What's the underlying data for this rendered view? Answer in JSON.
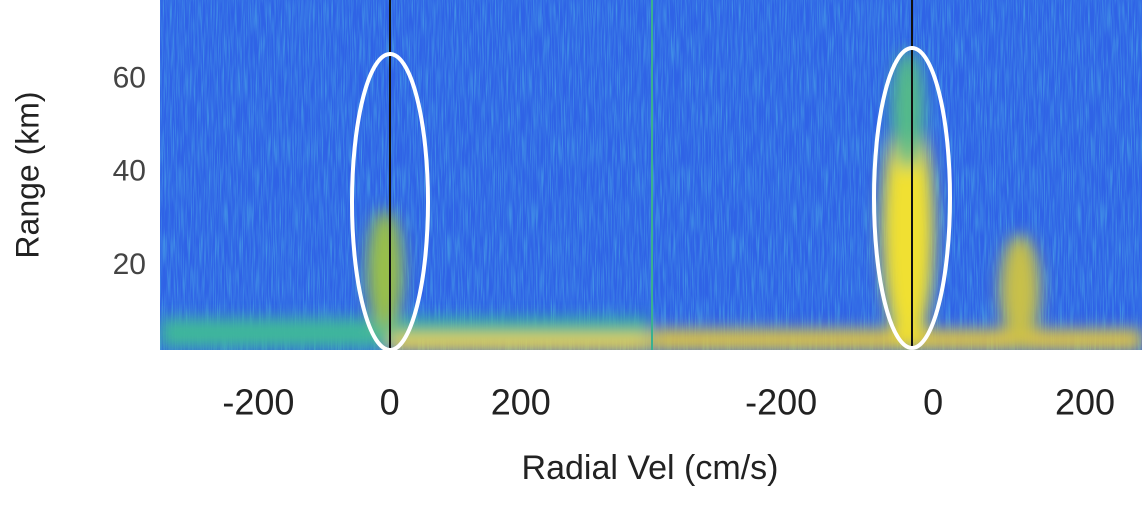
{
  "chart_data": [
    {
      "type": "heatmap",
      "ylabel": "Range (km)",
      "xlabel": "Radial Vel (cm/s)",
      "xlim": [
        -350,
        397
      ],
      "xticks": [
        -200,
        0,
        200
      ],
      "ylim": [
        2,
        77
      ],
      "yticks": [
        20,
        40,
        60
      ]
    },
    {
      "type": "heatmap",
      "xlim": [
        -370,
        275
      ],
      "xticks": [
        -200,
        0,
        200
      ],
      "ylim": [
        2,
        77
      ]
    }
  ]
}
